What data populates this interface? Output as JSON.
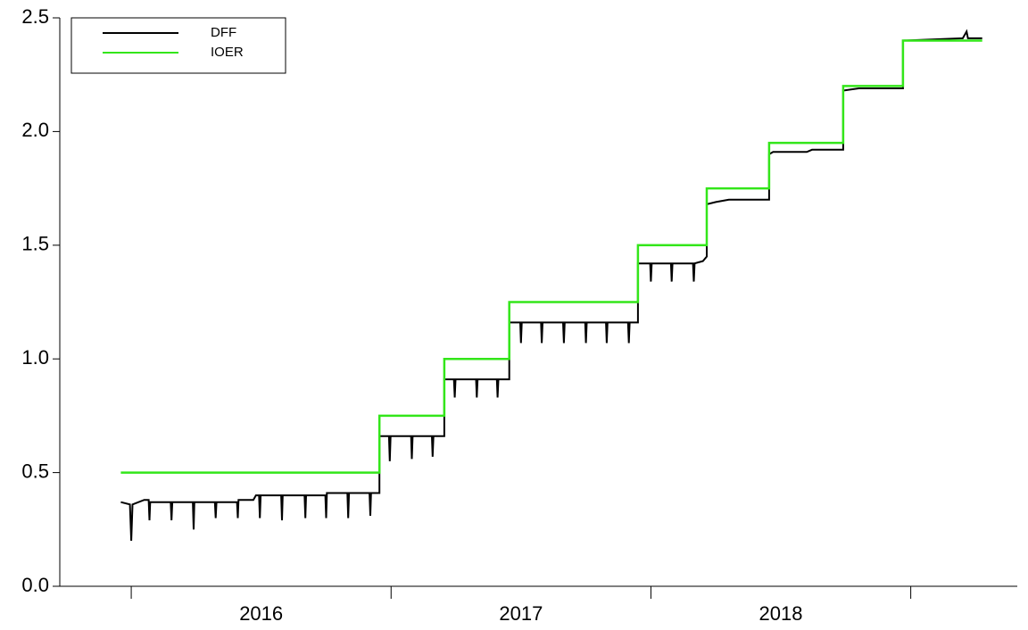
{
  "chart_data": {
    "type": "line",
    "xlim": [
      2015.725,
      2019.41
    ],
    "xticks": [
      {
        "value": 2016.5,
        "label": "2016"
      },
      {
        "value": 2017.5,
        "label": "2017"
      },
      {
        "value": 2018.5,
        "label": "2018"
      }
    ],
    "x_major_ticks": [
      2016,
      2017,
      2018,
      2019
    ],
    "ylim": [
      0,
      2.5
    ],
    "yticks": [
      {
        "value": 0,
        "label": "0.0"
      },
      0.5,
      {
        "value": 1,
        "label": "1.0"
      },
      1.5,
      {
        "value": 2,
        "label": "2.0"
      },
      2.5
    ],
    "legend": "upper left",
    "series": [
      {
        "name": "DFF",
        "color": "#000000",
        "x": [
          2015.96,
          2015.995,
          2016.0,
          2016.005,
          2016.05,
          2016.067,
          2016.07,
          2016.073,
          2016.152,
          2016.155,
          2016.158,
          2016.237,
          2016.24,
          2016.243,
          2016.322,
          2016.325,
          2016.328,
          2016.407,
          2016.41,
          2016.413,
          2016.47,
          2016.48,
          2016.492,
          2016.495,
          2016.498,
          2016.577,
          2016.58,
          2016.583,
          2016.667,
          2016.67,
          2016.673,
          2016.747,
          2016.75,
          2016.753,
          2016.832,
          2016.835,
          2016.838,
          2016.917,
          2016.92,
          2016.923,
          2016.955,
          2016.955,
          2016.992,
          2016.995,
          2016.998,
          2017.077,
          2017.08,
          2017.083,
          2017.157,
          2017.16,
          2017.163,
          2017.205,
          2017.205,
          2017.242,
          2017.245,
          2017.248,
          2017.327,
          2017.33,
          2017.333,
          2017.407,
          2017.41,
          2017.413,
          2017.455,
          2017.455,
          2017.497,
          2017.5,
          2017.503,
          2017.577,
          2017.58,
          2017.583,
          2017.662,
          2017.665,
          2017.668,
          2017.747,
          2017.75,
          2017.753,
          2017.827,
          2017.83,
          2017.833,
          2017.912,
          2017.915,
          2017.918,
          2017.95,
          2017.95,
          2017.997,
          2018.0,
          2018.003,
          2018.077,
          2018.08,
          2018.083,
          2018.162,
          2018.165,
          2018.168,
          2018.2,
          2018.215,
          2018.215,
          2018.25,
          2018.3,
          2018.455,
          2018.455,
          2018.47,
          2018.6,
          2018.62,
          2018.74,
          2018.74,
          2018.8,
          2018.97,
          2018.97,
          2019.2,
          2019.215,
          2019.22,
          2019.275
        ],
        "values": [
          0.37,
          0.36,
          0.2,
          0.36,
          0.38,
          0.38,
          0.29,
          0.37,
          0.37,
          0.29,
          0.37,
          0.37,
          0.25,
          0.37,
          0.37,
          0.3,
          0.37,
          0.37,
          0.3,
          0.38,
          0.38,
          0.4,
          0.4,
          0.3,
          0.4,
          0.4,
          0.29,
          0.4,
          0.4,
          0.3,
          0.4,
          0.4,
          0.3,
          0.41,
          0.41,
          0.3,
          0.41,
          0.41,
          0.31,
          0.41,
          0.41,
          0.66,
          0.66,
          0.55,
          0.66,
          0.66,
          0.56,
          0.66,
          0.66,
          0.57,
          0.66,
          0.66,
          0.91,
          0.91,
          0.83,
          0.91,
          0.91,
          0.83,
          0.91,
          0.91,
          0.83,
          0.91,
          0.91,
          1.16,
          1.16,
          1.07,
          1.16,
          1.16,
          1.07,
          1.16,
          1.16,
          1.07,
          1.16,
          1.16,
          1.07,
          1.16,
          1.16,
          1.07,
          1.16,
          1.16,
          1.07,
          1.16,
          1.16,
          1.42,
          1.42,
          1.34,
          1.42,
          1.42,
          1.34,
          1.42,
          1.42,
          1.34,
          1.42,
          1.43,
          1.45,
          1.68,
          1.69,
          1.7,
          1.7,
          1.9,
          1.91,
          1.91,
          1.92,
          1.92,
          2.18,
          2.19,
          2.19,
          2.4,
          2.41,
          2.44,
          2.41,
          2.41
        ]
      },
      {
        "name": "IOER",
        "color": "#33e61a",
        "x": [
          2015.96,
          2016.955,
          2016.955,
          2017.205,
          2017.205,
          2017.455,
          2017.455,
          2017.95,
          2017.95,
          2018.215,
          2018.215,
          2018.455,
          2018.455,
          2018.74,
          2018.74,
          2018.97,
          2018.97,
          2019.275
        ],
        "values": [
          0.5,
          0.5,
          0.75,
          0.75,
          1.0,
          1.0,
          1.25,
          1.25,
          1.5,
          1.5,
          1.75,
          1.75,
          1.95,
          1.95,
          2.2,
          2.2,
          2.4,
          2.4
        ]
      }
    ]
  }
}
